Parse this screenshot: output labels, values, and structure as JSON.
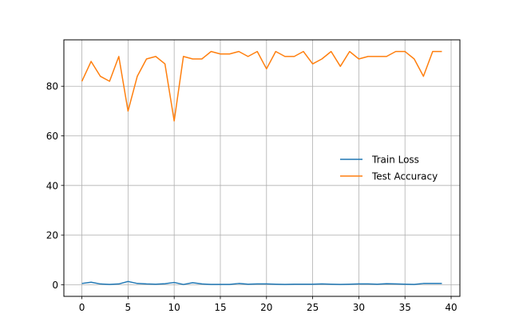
{
  "chart_data": {
    "type": "line",
    "title": "",
    "xlabel": "",
    "ylabel": "",
    "xlim": [
      -1.95,
      40.95
    ],
    "ylim": [
      -4.7,
      98.7
    ],
    "xticks": [
      0,
      5,
      10,
      15,
      20,
      25,
      30,
      35,
      40
    ],
    "yticks": [
      0,
      20,
      40,
      60,
      80
    ],
    "grid": true,
    "legend_position": "center-right",
    "x": [
      0,
      1,
      2,
      3,
      4,
      5,
      6,
      7,
      8,
      9,
      10,
      11,
      12,
      13,
      14,
      15,
      16,
      17,
      18,
      19,
      20,
      21,
      22,
      23,
      24,
      25,
      26,
      27,
      28,
      29,
      30,
      31,
      32,
      33,
      34,
      35,
      36,
      37,
      38,
      39
    ],
    "series": [
      {
        "name": "Train Loss",
        "color": "#1f77b4",
        "values": [
          0.5,
          1.0,
          0.3,
          0.1,
          0.3,
          1.3,
          0.5,
          0.3,
          0.2,
          0.4,
          0.9,
          0.1,
          0.8,
          0.3,
          0.1,
          0.1,
          0.1,
          0.5,
          0.2,
          0.3,
          0.3,
          0.2,
          0.1,
          0.2,
          0.2,
          0.2,
          0.3,
          0.2,
          0.1,
          0.2,
          0.3,
          0.3,
          0.2,
          0.4,
          0.3,
          0.2,
          0.1,
          0.5,
          0.5,
          0.5
        ]
      },
      {
        "name": "Test Accuracy",
        "color": "#ff7f0e",
        "values": [
          82,
          90,
          84,
          82,
          92,
          70,
          84,
          91,
          92,
          89,
          66,
          92,
          91,
          91,
          94,
          93,
          93,
          94,
          92,
          94,
          87,
          94,
          92,
          92,
          94,
          89,
          91,
          94,
          88,
          94,
          91,
          92,
          92,
          92,
          94,
          94,
          91,
          84,
          94,
          94
        ]
      }
    ]
  }
}
